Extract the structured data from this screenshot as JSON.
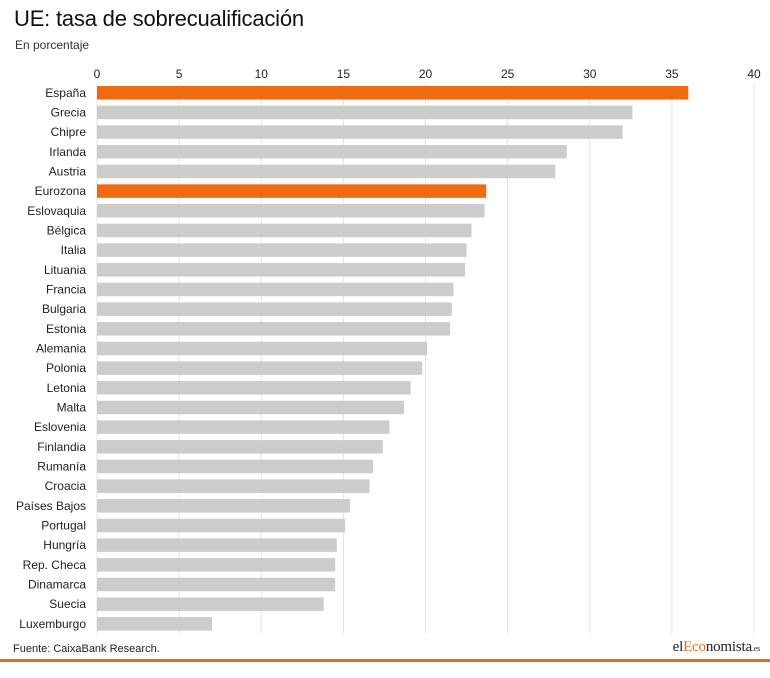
{
  "header": {
    "title": "UE: tasa de sobrecualificación",
    "subtitle": "En porcentaje"
  },
  "footer": {
    "source": "Fuente: CaixaBank Research.",
    "logo_prefix": "el",
    "logo_accent": "Eco",
    "logo_main": "nomista",
    "logo_suffix": ".es"
  },
  "colors": {
    "highlight": "#f26a10",
    "bar": "#cccccc",
    "grid": "#e3e3e3",
    "accent": "#f26a10"
  },
  "chart_data": {
    "type": "bar",
    "orientation": "horizontal",
    "title": "UE: tasa de sobrecualificación",
    "subtitle": "En porcentaje",
    "xlim": [
      0,
      40
    ],
    "xticks": [
      0,
      5,
      10,
      15,
      20,
      25,
      30,
      35,
      40
    ],
    "xaxis_position": "top",
    "grid": "vertical",
    "categories": [
      "España",
      "Grecia",
      "Chipre",
      "Irlanda",
      "Austria",
      "Eurozona",
      "Eslovaquia",
      "Bélgica",
      "Italia",
      "Lituania",
      "Francia",
      "Bulgaria",
      "Estonia",
      "Alemania",
      "Polonia",
      "Letonia",
      "Malta",
      "Eslovenia",
      "Finlandia",
      "Rumanía",
      "Croacia",
      "Países Bajos",
      "Portugal",
      "Hungría",
      "Rep. Checa",
      "Dinamarca",
      "Suecia",
      "Luxemburgo"
    ],
    "values": [
      36.0,
      32.6,
      32.0,
      28.6,
      27.9,
      23.7,
      23.6,
      22.8,
      22.5,
      22.4,
      21.7,
      21.6,
      21.5,
      20.1,
      19.8,
      19.1,
      18.7,
      17.8,
      17.4,
      16.8,
      16.6,
      15.4,
      15.1,
      14.6,
      14.5,
      14.5,
      13.8,
      7.0
    ],
    "highlighted": [
      "España",
      "Eurozona"
    ]
  }
}
